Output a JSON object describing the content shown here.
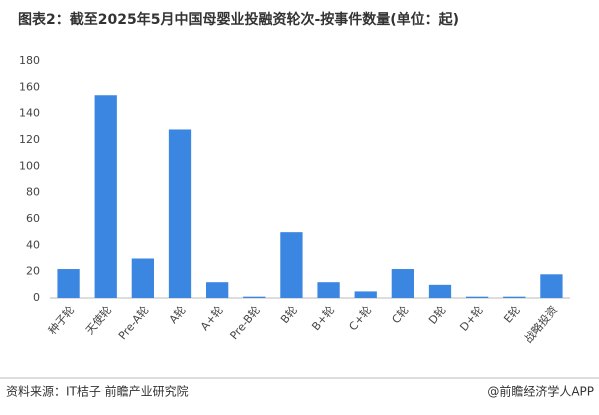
{
  "chart_data": {
    "type": "bar",
    "title": "图表2：截至2025年5月中国母婴业投融资轮次-按事件数量(单位：起)",
    "categories": [
      "种子轮",
      "天使轮",
      "Pre-A轮",
      "A轮",
      "A+轮",
      "Pre-B轮",
      "B轮",
      "B+轮",
      "C+轮",
      "C轮",
      "D轮",
      "D+轮",
      "E轮",
      "战略投资"
    ],
    "values": [
      22,
      154,
      30,
      128,
      12,
      1,
      50,
      12,
      5,
      22,
      10,
      1,
      1,
      18
    ],
    "color": "#3a86e0",
    "ylim": [
      0,
      180
    ],
    "yticks": [
      0,
      20,
      40,
      60,
      80,
      100,
      120,
      140,
      160,
      180
    ],
    "grid": false,
    "source": "资料来源：IT桔子 前瞻产业研究院",
    "brand": "@前瞻经济学人APP"
  }
}
